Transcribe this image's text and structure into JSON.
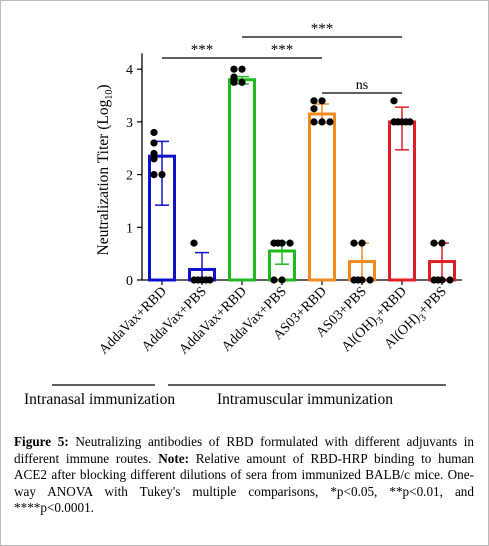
{
  "chart_data": {
    "type": "bar",
    "ylabel_text": "Neutralization Titer (Log",
    "ylabel_sub": "10",
    "ylabel_close": ")",
    "ylim": [
      0,
      4.3
    ],
    "yticks": [
      "0",
      "1",
      "2",
      "3",
      "4"
    ],
    "categories": [
      {
        "pre": "AddaVax+RBD",
        "sub": "",
        "post": ""
      },
      {
        "pre": "AddaVax+PBS",
        "sub": "",
        "post": ""
      },
      {
        "pre": "AddaVax+RBD",
        "sub": "",
        "post": ""
      },
      {
        "pre": "AddaVax+PBS",
        "sub": "",
        "post": ""
      },
      {
        "pre": "AS03+RBD",
        "sub": "",
        "post": ""
      },
      {
        "pre": "AS03+PBS",
        "sub": "",
        "post": ""
      },
      {
        "pre": "Al(OH)",
        "sub": "3",
        "post": "+RBD"
      },
      {
        "pre": "Al(OH)",
        "sub": "3",
        "post": "+PBS"
      }
    ],
    "values": [
      2.35,
      0.2,
      3.8,
      0.55,
      3.15,
      0.35,
      3.0,
      0.35
    ],
    "errors": [
      [
        1.42,
        2.63
      ],
      [
        0.0,
        0.52
      ],
      [
        3.72,
        3.86
      ],
      [
        0.3,
        0.72
      ],
      [
        2.98,
        3.34
      ],
      [
        0.0,
        0.7
      ],
      [
        2.47,
        3.28
      ],
      [
        0.0,
        0.7
      ]
    ],
    "colors": [
      "#1010c8",
      "#1010c8",
      "#1fb81f",
      "#1fb81f",
      "#f08a1e",
      "#f08a1e",
      "#dd1f26",
      "#dd1f26"
    ],
    "points": [
      [
        2.8,
        2.6,
        2.4,
        2.3,
        2.0,
        2.0
      ],
      [
        0.7,
        0.0,
        0.0,
        0.0,
        0.0,
        0.0
      ],
      [
        4.0,
        4.0,
        3.85,
        3.8,
        3.75,
        3.75
      ],
      [
        0.7,
        0.7,
        0.7,
        0.7,
        0.0,
        0.0
      ],
      [
        3.4,
        3.4,
        3.25,
        3.0,
        3.0,
        3.0
      ],
      [
        0.7,
        0.7,
        0.0,
        0.0,
        0.0,
        0.0
      ],
      [
        3.4,
        3.0,
        3.0,
        3.0,
        3.0,
        3.0
      ],
      [
        0.7,
        0.7,
        0.0,
        0.0,
        0.0,
        0.0
      ]
    ],
    "significance": [
      {
        "from": 0,
        "to": 2,
        "label": "***"
      },
      {
        "from": 2,
        "to": 4,
        "label": "***"
      },
      {
        "from": 2,
        "to": 6,
        "label": "***"
      },
      {
        "from": 4,
        "to": 6,
        "label": "ns"
      }
    ],
    "groups": [
      {
        "label": "Intranasal immunization",
        "from": 0,
        "to": 1
      },
      {
        "label": "Intramuscular immunization",
        "from": 2,
        "to": 7
      }
    ]
  },
  "caption": {
    "figure_label": "Figure 5:",
    "text": " Neutralizing antibodies of RBD formulated with different adjuvants in different immune routes. ",
    "note_label": "Note:",
    "note_text": " Relative amount of RBD-HRP binding to human ACE2 after blocking different dilutions of sera from immunized BALB/c mice. One-way ANOVA with Tukey's multiple comparisons, *p<0.05, **p<0.01, and ****p<0.0001."
  }
}
